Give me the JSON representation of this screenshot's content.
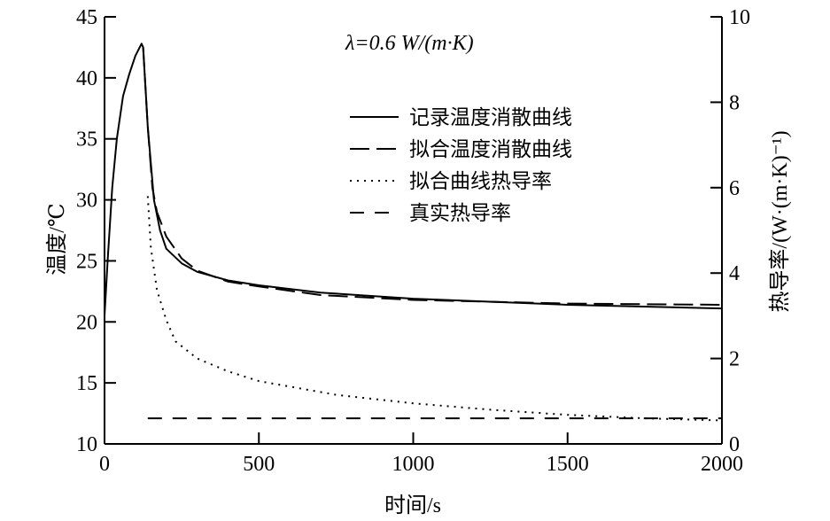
{
  "chart_data": {
    "type": "line",
    "annotation": "λ=0.6 W/(m·K)",
    "xlabel": "时间/s",
    "ylabel": "温度/℃",
    "y2label": "热导率/(W·(m·K)⁻¹)",
    "xlim": [
      0,
      2000
    ],
    "ylim": [
      10,
      45
    ],
    "y2lim": [
      0,
      10
    ],
    "xticks": [
      "0",
      "500",
      "1000",
      "1500",
      "2000"
    ],
    "yticks": [
      "10",
      "15",
      "20",
      "25",
      "30",
      "35",
      "40",
      "45"
    ],
    "y2ticks": [
      "0",
      "2",
      "4",
      "6",
      "8",
      "10"
    ],
    "grid": false,
    "legend_position": "top-center",
    "series": [
      {
        "name": "记录温度消散曲线",
        "axis": "left",
        "style": "solid",
        "x": [
          0,
          10,
          25,
          40,
          60,
          80,
          100,
          120,
          125,
          140,
          160,
          180,
          200,
          250,
          300,
          400,
          500,
          700,
          1000,
          1500,
          2000
        ],
        "y": [
          20.5,
          25,
          31,
          35,
          38.5,
          40.3,
          41.8,
          42.8,
          42.5,
          36,
          30,
          27.5,
          26,
          24.8,
          24.1,
          23.4,
          23,
          22.4,
          21.9,
          21.4,
          21.1
        ]
      },
      {
        "name": "拟合温度消散曲线",
        "axis": "left",
        "style": "longdash",
        "x": [
          125,
          140,
          155,
          170,
          200,
          250,
          300,
          400,
          500,
          700,
          1000,
          1500,
          2000
        ],
        "y": [
          42.5,
          36,
          31,
          29,
          27,
          25.2,
          24.2,
          23.3,
          22.9,
          22.2,
          21.8,
          21.5,
          21.4
        ]
      },
      {
        "name": "拟合曲线热导率",
        "axis": "right",
        "style": "dotted",
        "x": [
          140,
          150,
          170,
          200,
          230,
          300,
          400,
          500,
          750,
          1000,
          1250,
          1500,
          1750,
          2000
        ],
        "y": [
          5.8,
          4.6,
          3.6,
          2.9,
          2.4,
          2.0,
          1.7,
          1.47,
          1.15,
          0.95,
          0.8,
          0.68,
          0.6,
          0.55
        ]
      },
      {
        "name": "真实热导率",
        "axis": "right",
        "style": "dashed",
        "x": [
          140,
          2000
        ],
        "y": [
          0.6,
          0.6
        ]
      }
    ]
  }
}
